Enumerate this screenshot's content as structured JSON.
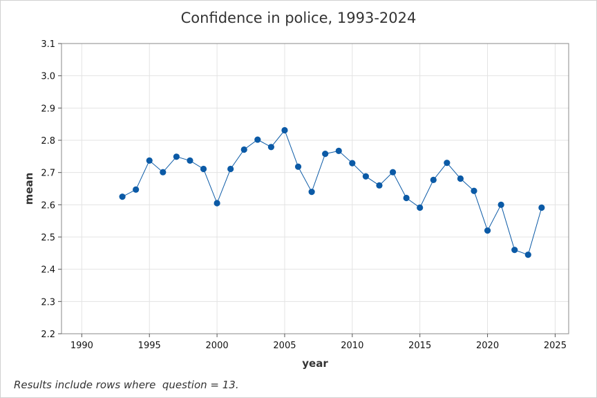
{
  "chart_data": {
    "type": "line",
    "title": "Confidence in police, 1993-2024",
    "xlabel": "year",
    "ylabel": "mean",
    "xlim": [
      1988.5,
      2026
    ],
    "ylim": [
      2.2,
      3.1
    ],
    "x_ticks": [
      1990,
      1995,
      2000,
      2005,
      2010,
      2015,
      2020,
      2025
    ],
    "y_ticks": [
      2.2,
      2.3,
      2.4,
      2.5,
      2.6,
      2.7,
      2.8,
      2.9,
      3.0,
      3.1
    ],
    "y_tick_labels": [
      "2.2",
      "2.3",
      "2.4",
      "2.5",
      "2.6",
      "2.7",
      "2.8",
      "2.9",
      "3.0",
      "3.1"
    ],
    "grid": true,
    "series": [
      {
        "color": "#0b5aa6",
        "x": [
          1993,
          1994,
          1995,
          1996,
          1997,
          1998,
          1999,
          2000,
          2001,
          2002,
          2003,
          2004,
          2005,
          2006,
          2007,
          2008,
          2009,
          2010,
          2011,
          2012,
          2013,
          2014,
          2015,
          2016,
          2017,
          2018,
          2019,
          2020,
          2021,
          2022,
          2023,
          2024
        ],
        "y": [
          2.625,
          2.647,
          2.737,
          2.701,
          2.749,
          2.737,
          2.711,
          2.605,
          2.711,
          2.771,
          2.802,
          2.779,
          2.831,
          2.718,
          2.64,
          2.758,
          2.767,
          2.729,
          2.688,
          2.66,
          2.701,
          2.621,
          2.591,
          2.677,
          2.73,
          2.681,
          2.643,
          2.52,
          2.6,
          2.46,
          2.445,
          2.591
        ]
      }
    ],
    "footnote": "Results include rows where  question = 13."
  }
}
